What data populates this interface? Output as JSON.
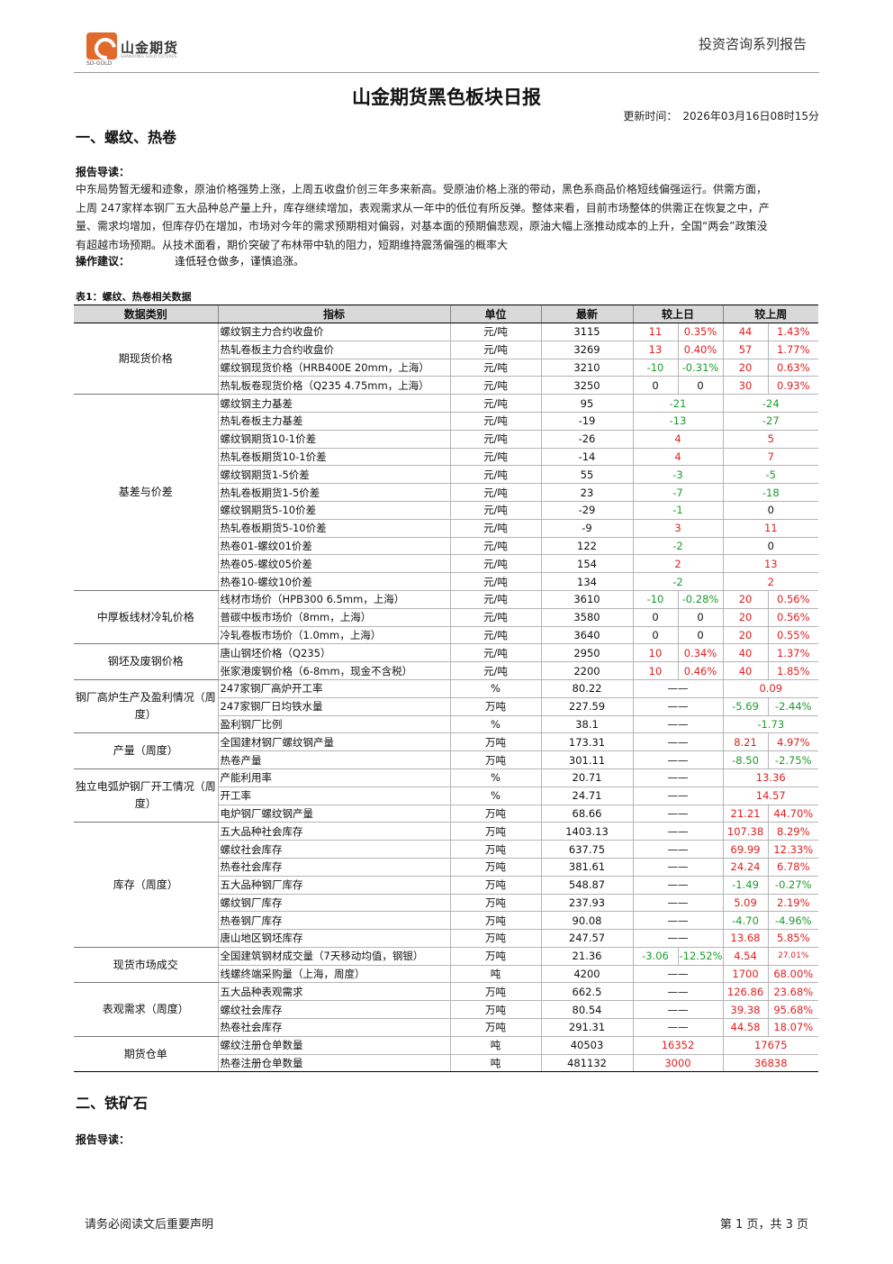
{
  "header": {
    "logo_text": "山金期货",
    "logo_sub": "SD-GOLD",
    "logo_sub_en": "SHANDONG GOLD FUTURES",
    "series": "投资咨询系列报告"
  },
  "title": "山金期货黑色板块日报",
  "update": {
    "label": "更新时间：",
    "value": "2026年03月16日08时15分"
  },
  "section1": {
    "heading": "一、螺纹、热卷",
    "guide_label": "报告导读：",
    "guide_lines": [
      "中东局势暂无缓和迹象，原油价格强势上涨，上周五收盘价创三年多来新高。受原油价格上涨的带动，黑色系商品价格短线偏强运行。供需方面，",
      "上周 247家样本钢厂五大品种总产量上升，库存继续增加，表观需求从一年中的低位有所反弹。整体来看，目前市场整体的供需正在恢复之中，产",
      "量、需求均增加，但库存仍在增加，市场对今年的需求预期相对偏弱，对基本面的预期偏悲观，原油大幅上涨推动成本的上升，全国“两会”政策没",
      "有超越市场预期。从技术面看，期价突破了布林带中轨的阻力，短期维持震荡偏强的概率大"
    ],
    "advice_label": "操作建议：",
    "advice_text": "逢低轻仓做多，谨慎追涨。",
    "table_title": "表1：螺纹、热卷相关数据"
  },
  "table": {
    "headers": [
      "数据类别",
      "指标",
      "单位",
      "最新",
      "较上日",
      "较上周"
    ],
    "rows": [
      {
        "cat": "期现货价格",
        "span": 4,
        "ind": "螺纹钢主力合约收盘价",
        "unit": "元/吨",
        "latest": "3115",
        "d1": "11",
        "d2": "0.35%",
        "w1": "44",
        "w2": "1.43%",
        "dc": "up",
        "wc": "up"
      },
      {
        "ind": "热轧卷板主力合约收盘价",
        "unit": "元/吨",
        "latest": "3269",
        "d1": "13",
        "d2": "0.40%",
        "w1": "57",
        "w2": "1.77%",
        "dc": "up",
        "wc": "up"
      },
      {
        "ind": "螺纹钢现货价格（HRB400E 20mm，上海）",
        "unit": "元/吨",
        "latest": "3210",
        "d1": "-10",
        "d2": "-0.31%",
        "w1": "20",
        "w2": "0.63%",
        "dc": "dn",
        "wc": "up"
      },
      {
        "ind": "热轧板卷现货价格（Q235 4.75mm，上海）",
        "unit": "元/吨",
        "latest": "3250",
        "d1": "0",
        "d2": "0",
        "w1": "30",
        "w2": "0.93%",
        "dc": "",
        "wc": "up"
      },
      {
        "cat": "基差与价差",
        "span": 11,
        "ind": "螺纹钢主力基差",
        "unit": "元/吨",
        "latest": "95",
        "d": "-21",
        "w": "-24",
        "dc": "dn",
        "wc": "dn"
      },
      {
        "ind": "热轧卷板主力基差",
        "unit": "元/吨",
        "latest": "-19",
        "d": "-13",
        "w": "-27",
        "dc": "dn",
        "wc": "dn"
      },
      {
        "ind": "螺纹钢期货10-1价差",
        "unit": "元/吨",
        "latest": "-26",
        "d": "4",
        "w": "5",
        "dc": "up",
        "wc": "up"
      },
      {
        "ind": "热轧卷板期货10-1价差",
        "unit": "元/吨",
        "latest": "-14",
        "d": "4",
        "w": "7",
        "dc": "up",
        "wc": "up"
      },
      {
        "ind": "螺纹钢期货1-5价差",
        "unit": "元/吨",
        "latest": "55",
        "d": "-3",
        "w": "-5",
        "dc": "dn",
        "wc": "dn"
      },
      {
        "ind": "热轧卷板期货1-5价差",
        "unit": "元/吨",
        "latest": "23",
        "d": "-7",
        "w": "-18",
        "dc": "dn",
        "wc": "dn"
      },
      {
        "ind": "螺纹钢期货5-10价差",
        "unit": "元/吨",
        "latest": "-29",
        "d": "-1",
        "w": "0",
        "dc": "dn",
        "wc": ""
      },
      {
        "ind": "热轧卷板期货5-10价差",
        "unit": "元/吨",
        "latest": "-9",
        "d": "3",
        "w": "11",
        "dc": "up",
        "wc": "up"
      },
      {
        "ind": "热卷01-螺纹01价差",
        "unit": "元/吨",
        "latest": "122",
        "d": "-2",
        "w": "0",
        "dc": "dn",
        "wc": ""
      },
      {
        "ind": "热卷05-螺纹05价差",
        "unit": "元/吨",
        "latest": "154",
        "d": "2",
        "w": "13",
        "dc": "up",
        "wc": "up"
      },
      {
        "ind": "热卷10-螺纹10价差",
        "unit": "元/吨",
        "latest": "134",
        "d": "-2",
        "w": "2",
        "dc": "dn",
        "wc": "up"
      },
      {
        "cat": "中厚板线材冷轧价格",
        "span": 3,
        "ind": "线材市场价（HPB300 6.5mm，上海）",
        "unit": "元/吨",
        "latest": "3610",
        "d1": "-10",
        "d2": "-0.28%",
        "w1": "20",
        "w2": "0.56%",
        "dc": "dn",
        "wc": "up"
      },
      {
        "ind": "普碳中板市场价（8mm，上海）",
        "unit": "元/吨",
        "latest": "3580",
        "d1": "0",
        "d2": "0",
        "w1": "20",
        "w2": "0.56%",
        "dc": "",
        "wc": "up"
      },
      {
        "ind": "冷轧卷板市场价（1.0mm，上海）",
        "unit": "元/吨",
        "latest": "3640",
        "d1": "0",
        "d2": "0",
        "w1": "20",
        "w2": "0.55%",
        "dc": "",
        "wc": "up"
      },
      {
        "cat": "钢坯及废钢价格",
        "span": 2,
        "ind": "唐山钢坯价格（Q235）",
        "unit": "元/吨",
        "latest": "2950",
        "d1": "10",
        "d2": "0.34%",
        "w1": "40",
        "w2": "1.37%",
        "dc": "up",
        "wc": "up"
      },
      {
        "ind": "张家港废钢价格（6-8mm，现金不含税）",
        "unit": "元/吨",
        "latest": "2200",
        "d1": "10",
        "d2": "0.46%",
        "w1": "40",
        "w2": "1.85%",
        "dc": "up",
        "wc": "up"
      },
      {
        "cat": "钢厂高炉生产及盈利情况（周度）",
        "span": 3,
        "ind": "247家钢厂高炉开工率",
        "unit": "%",
        "latest": "80.22",
        "d": "——",
        "w": "0.09",
        "dc": "",
        "wc": "up"
      },
      {
        "ind": "247家钢厂日均铁水量",
        "unit": "万吨",
        "latest": "227.59",
        "d": "——",
        "w1": "-5.69",
        "w2": "-2.44%",
        "dc": "",
        "wc": "dn"
      },
      {
        "ind": "盈利钢厂比例",
        "unit": "%",
        "latest": "38.1",
        "d": "——",
        "w": "-1.73",
        "dc": "",
        "wc": "dn"
      },
      {
        "cat": "产量（周度）",
        "span": 2,
        "ind": "全国建材钢厂螺纹钢产量",
        "unit": "万吨",
        "latest": "173.31",
        "d": "——",
        "w1": "8.21",
        "w2": "4.97%",
        "dc": "",
        "wc": "up"
      },
      {
        "ind": "热卷产量",
        "unit": "万吨",
        "latest": "301.11",
        "d": "——",
        "w1": "-8.50",
        "w2": "-2.75%",
        "dc": "",
        "wc": "dn"
      },
      {
        "cat": "独立电弧炉钢厂开工情况（周度）",
        "span": 3,
        "ind": "产能利用率",
        "unit": "%",
        "latest": "20.71",
        "d": "——",
        "w": "13.36",
        "dc": "",
        "wc": "up"
      },
      {
        "ind": "开工率",
        "unit": "%",
        "latest": "24.71",
        "d": "——",
        "w": "14.57",
        "dc": "",
        "wc": "up"
      },
      {
        "ind": "电炉钢厂螺纹钢产量",
        "unit": "万吨",
        "latest": "68.66",
        "d": "——",
        "w1": "21.21",
        "w2": "44.70%",
        "dc": "",
        "wc": "up"
      },
      {
        "cat": "库存（周度）",
        "span": 7,
        "ind": "五大品种社会库存",
        "unit": "万吨",
        "latest": "1403.13",
        "d": "——",
        "w1": "107.38",
        "w2": "8.29%",
        "dc": "",
        "wc": "up"
      },
      {
        "ind": "螺纹社会库存",
        "unit": "万吨",
        "latest": "637.75",
        "d": "——",
        "w1": "69.99",
        "w2": "12.33%",
        "dc": "",
        "wc": "up"
      },
      {
        "ind": "热卷社会库存",
        "unit": "万吨",
        "latest": "381.61",
        "d": "——",
        "w1": "24.24",
        "w2": "6.78%",
        "dc": "",
        "wc": "up"
      },
      {
        "ind": "五大品种钢厂库存",
        "unit": "万吨",
        "latest": "548.87",
        "d": "——",
        "w1": "-1.49",
        "w2": "-0.27%",
        "dc": "",
        "wc": "dn"
      },
      {
        "ind": "螺纹钢厂库存",
        "unit": "万吨",
        "latest": "237.93",
        "d": "——",
        "w1": "5.09",
        "w2": "2.19%",
        "dc": "",
        "wc": "up"
      },
      {
        "ind": "热卷钢厂库存",
        "unit": "万吨",
        "latest": "90.08",
        "d": "——",
        "w1": "-4.70",
        "w2": "-4.96%",
        "dc": "",
        "wc": "dn"
      },
      {
        "ind": "唐山地区钢坯库存",
        "unit": "万吨",
        "latest": "247.57",
        "d": "——",
        "w1": "13.68",
        "w2": "5.85%",
        "dc": "",
        "wc": "up"
      },
      {
        "cat": "现货市场成交",
        "span": 2,
        "ind": "全国建筑钢材成交量（7天移动均值，钢银）",
        "unit": "万吨",
        "latest": "21.36",
        "d1": "-3.06",
        "d2": "-12.52%",
        "w1": "4.54",
        "w2": "27.01%",
        "dc": "dn",
        "wc": "up",
        "w2sm": true
      },
      {
        "ind": "线螺终端采购量（上海，周度）",
        "unit": "吨",
        "latest": "4200",
        "d": "——",
        "w1": "1700",
        "w2": "68.00%",
        "dc": "",
        "wc": "up"
      },
      {
        "cat": "表观需求（周度）",
        "span": 3,
        "ind": "五大品种表观需求",
        "unit": "万吨",
        "latest": "662.5",
        "d": "——",
        "w1": "126.86",
        "w2": "23.68%",
        "dc": "",
        "wc": "up"
      },
      {
        "ind": "螺纹社会库存",
        "unit": "万吨",
        "latest": "80.54",
        "d": "——",
        "w1": "39.38",
        "w2": "95.68%",
        "dc": "",
        "wc": "up"
      },
      {
        "ind": "热卷社会库存",
        "unit": "万吨",
        "latest": "291.31",
        "d": "——",
        "w1": "44.58",
        "w2": "18.07%",
        "dc": "",
        "wc": "up"
      },
      {
        "cat": "期货仓单",
        "span": 2,
        "ind": "螺纹注册仓单数量",
        "unit": "吨",
        "latest": "40503",
        "d": "16352",
        "w": "17675",
        "dc": "up",
        "wc": "up"
      },
      {
        "ind": "热卷注册仓单数量",
        "unit": "吨",
        "latest": "481132",
        "d": "3000",
        "w": "36838",
        "dc": "up",
        "wc": "up"
      }
    ]
  },
  "section2": {
    "heading": "二、铁矿石",
    "guide_label": "报告导读："
  },
  "footer": {
    "left": "请务必阅读文后重要声明",
    "right": "第 1 页，共 3 页"
  }
}
